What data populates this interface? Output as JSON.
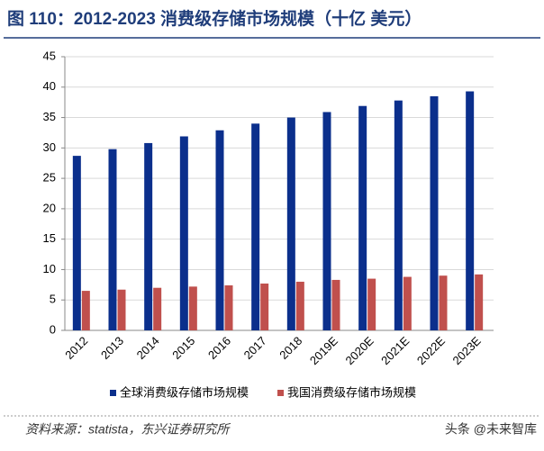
{
  "chart_data": {
    "type": "bar",
    "title": "图 110：2012-2023 消费级存储市场规模（十亿 美元）",
    "categories": [
      "2012",
      "2013",
      "2014",
      "2015",
      "2016",
      "2017",
      "2018",
      "2019E",
      "2020E",
      "2021E",
      "2022E",
      "2023E"
    ],
    "series": [
      {
        "name": "全球消费级存储市场规模",
        "color": "#0b2f8c",
        "values": [
          28.7,
          29.8,
          30.8,
          31.9,
          32.9,
          34.0,
          35.0,
          35.9,
          36.9,
          37.8,
          38.5,
          39.3
        ]
      },
      {
        "name": "我国消费级存储市场规模",
        "color": "#c0504d",
        "values": [
          6.5,
          6.7,
          7.0,
          7.2,
          7.4,
          7.7,
          8.0,
          8.3,
          8.5,
          8.8,
          9.0,
          9.2
        ]
      }
    ],
    "ylim": [
      0,
      45
    ],
    "yticks": [
      0,
      5,
      10,
      15,
      20,
      25,
      30,
      35,
      40,
      45
    ],
    "grid": true,
    "legend": "bottom"
  },
  "footer": {
    "source": "资料来源：statista，东兴证券研究所",
    "watermark": "头条 @未来智库"
  }
}
